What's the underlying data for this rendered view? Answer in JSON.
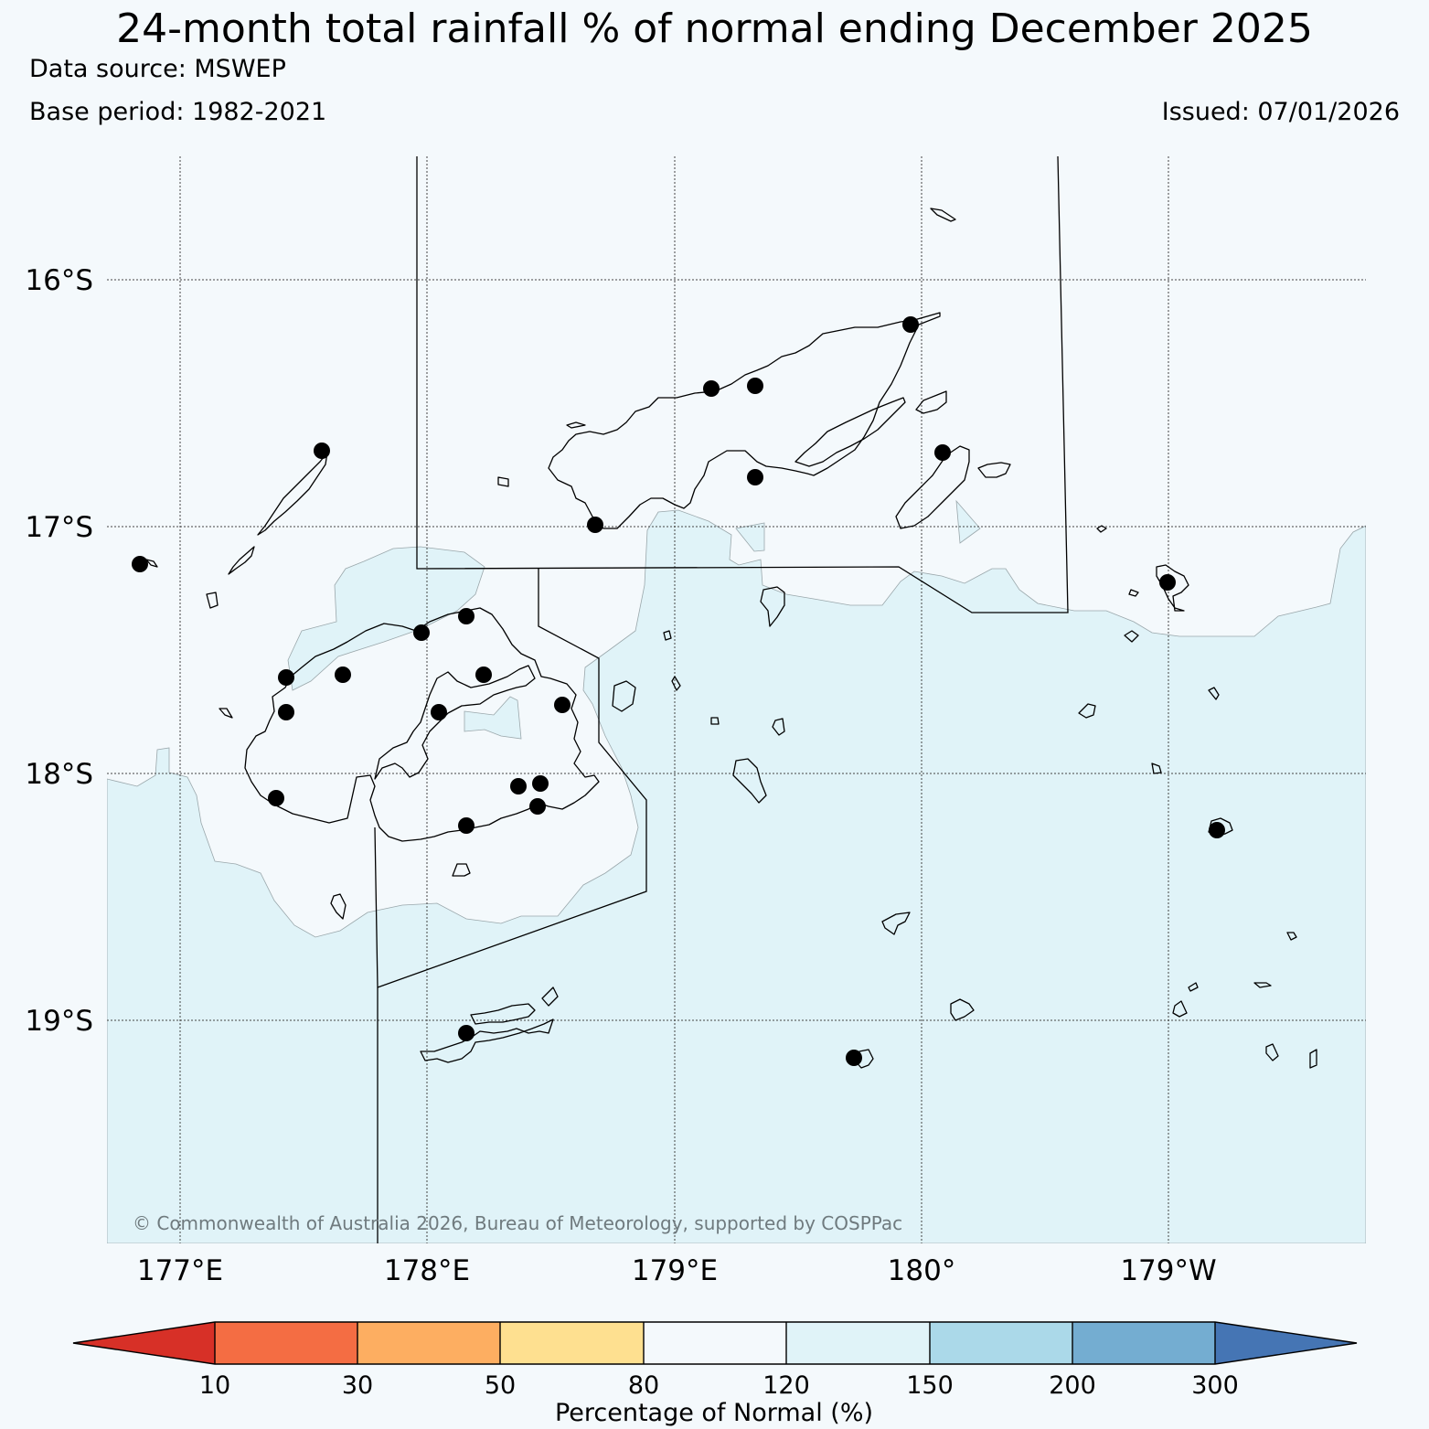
{
  "header": {
    "title": "24-month total rainfall % of normal ending December 2025",
    "data_source": "Data source: MSWEP",
    "base_period": "Base period: 1982-2021",
    "issued": "Issued: 07/01/2026"
  },
  "map": {
    "lat_labels": [
      "16°S",
      "17°S",
      "18°S",
      "19°S"
    ],
    "lon_labels": [
      "177°E",
      "178°E",
      "179°E",
      "180°",
      "179°W"
    ],
    "copyright": "© Commonwealth of Australia 2026, Bureau of Meteorology, supported by COSPPac",
    "colors": {
      "sea_fill": "#e0f3f8",
      "normal_fill": "#f4f9fc",
      "station": "#000000"
    }
  },
  "colorbar": {
    "title": "Percentage of Normal (%)",
    "ticks": [
      "10",
      "30",
      "50",
      "80",
      "120",
      "150",
      "200",
      "300"
    ],
    "colors": [
      "#d73027",
      "#f46d43",
      "#fdae61",
      "#fee090",
      "#f4f9fc",
      "#e0f3f8",
      "#abd9e9",
      "#74add1",
      "#4575b4"
    ]
  }
}
